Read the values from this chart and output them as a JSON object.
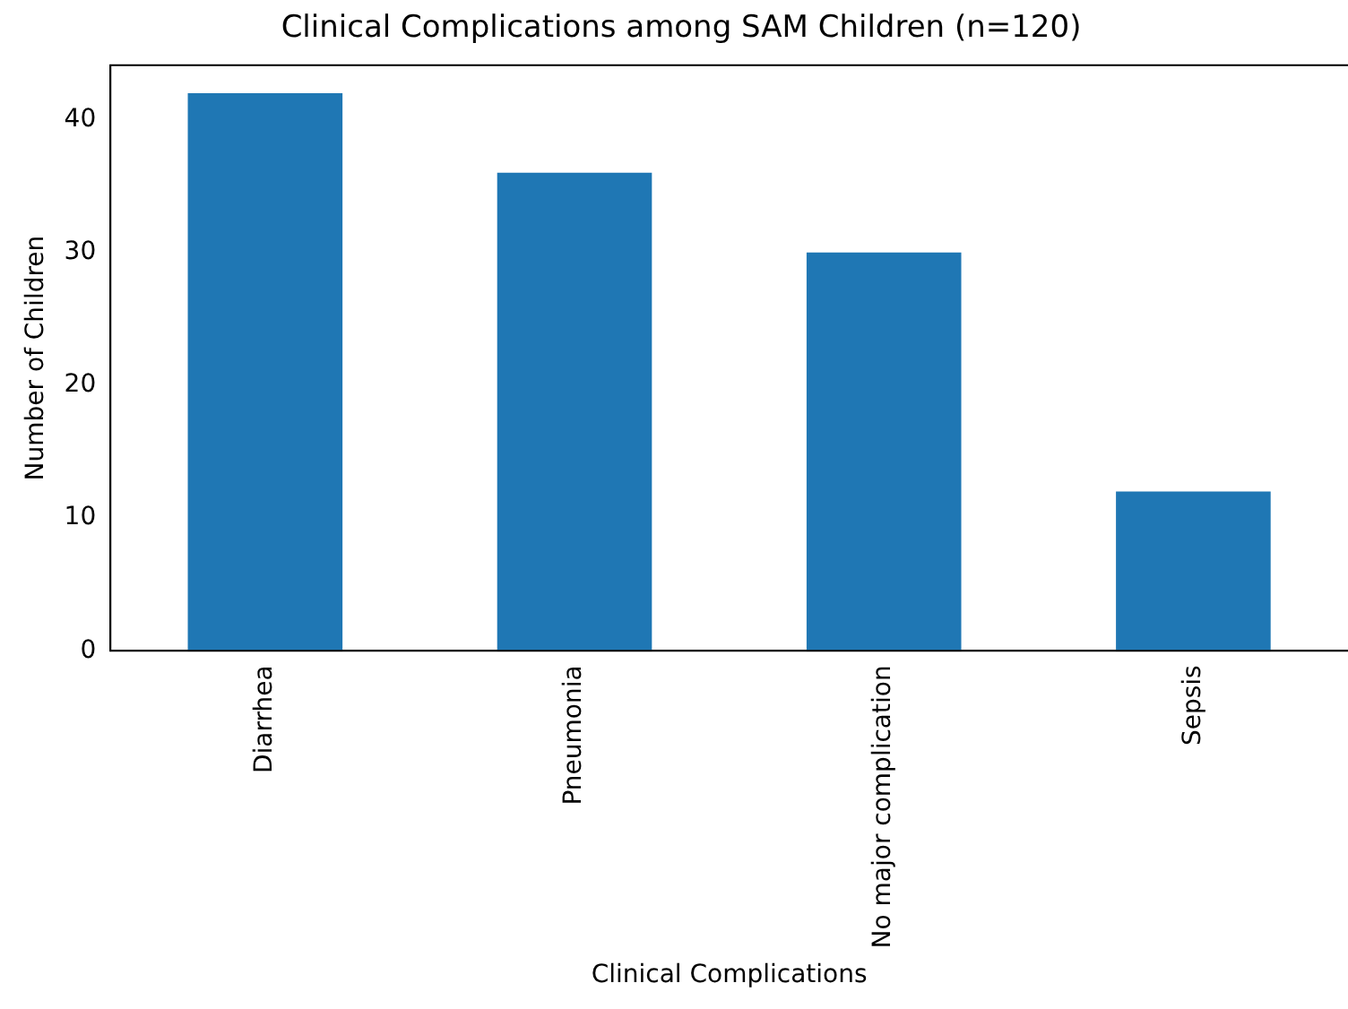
{
  "chart_data": {
    "type": "bar",
    "title": "Clinical Complications among SAM Children (n=120)",
    "xlabel": "Clinical Complications",
    "ylabel": "Number of Children",
    "categories": [
      "Diarrhea",
      "Pneumonia",
      "No major complication",
      "Sepsis"
    ],
    "values": [
      42,
      36,
      30,
      12
    ],
    "color": "#1f77b4",
    "ylim": [
      0,
      44.1
    ],
    "yticks": [
      0,
      10,
      20,
      30,
      40
    ],
    "grid": false,
    "legend": false
  }
}
